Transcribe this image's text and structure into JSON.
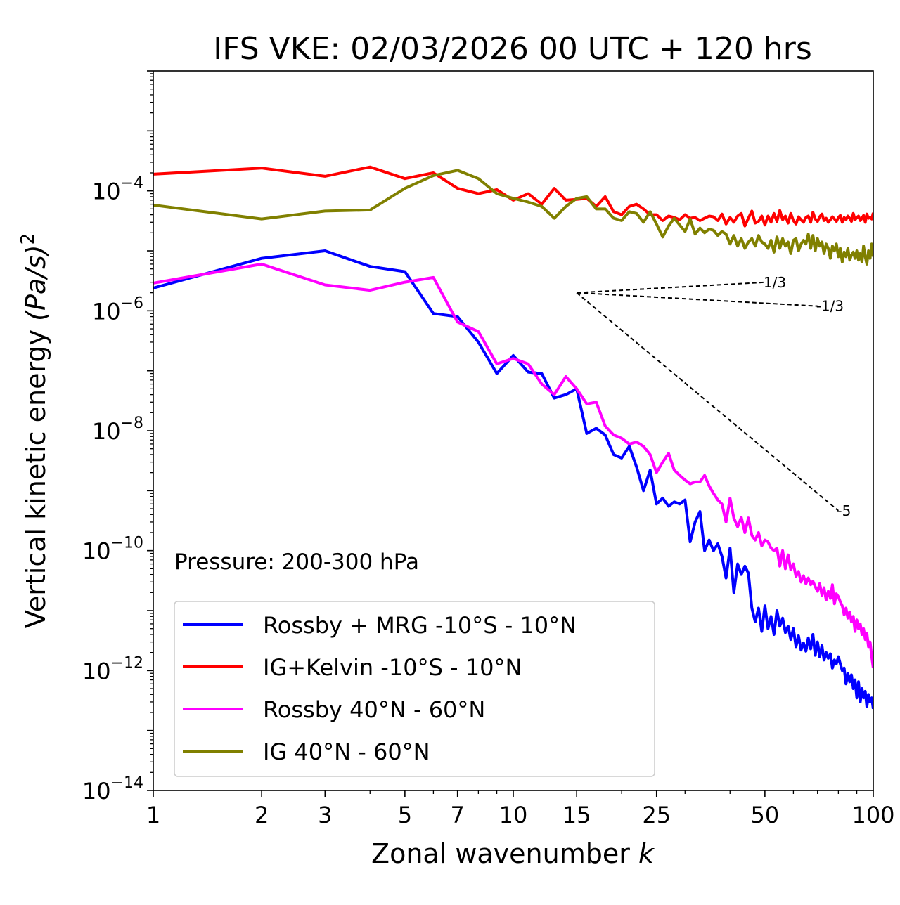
{
  "chart_data": {
    "type": "line",
    "title": "IFS VKE: 02/03/2026 00 UTC + 120 hrs",
    "xlabel": "Zonal wavenumber",
    "xlabel_var": "k",
    "ylabel": "Vertical kinetic energy",
    "ylabel_units": "(Pa/s)",
    "ylabel_units_exp": "2",
    "xscale": "log",
    "yscale": "log",
    "xlim": [
      1,
      100
    ],
    "ylim_exp": [
      -14,
      -2
    ],
    "x_ticks": [
      1,
      2,
      3,
      5,
      7,
      10,
      15,
      25,
      50,
      100
    ],
    "x_tick_labels": [
      "1",
      "2",
      "3",
      "5",
      "7",
      "10",
      "15",
      "25",
      "50",
      "100"
    ],
    "y_ticks_exp": [
      -14,
      -12,
      -10,
      -8,
      -6,
      -4
    ],
    "y_tick_base": "10",
    "y_tick_exponents": [
      "−14",
      "−12",
      "−10",
      "−8",
      "−6",
      "−4"
    ],
    "annotation": "Pressure: 200-300 hPa",
    "legend_position": "lower-left",
    "series": [
      {
        "name": "Rossby + MRG -10°S - 10°N",
        "color": "#0000ff",
        "x": [
          1,
          2,
          3,
          4,
          5,
          6,
          7,
          8,
          9,
          10,
          11,
          12,
          13,
          14,
          15,
          16,
          17,
          18,
          19,
          20,
          21,
          22,
          23,
          24,
          25,
          26,
          27,
          28,
          29,
          30,
          31,
          32,
          33,
          34,
          35,
          36,
          37,
          38,
          39,
          40,
          41,
          42,
          43,
          44,
          45,
          46,
          47,
          48,
          49,
          50,
          51,
          52,
          53,
          54,
          55,
          56,
          57,
          58,
          59,
          60,
          61,
          62,
          63,
          64,
          65,
          66,
          67,
          68,
          69,
          70,
          71,
          72,
          73,
          74,
          75,
          76,
          77,
          78,
          79,
          80,
          81,
          82,
          83,
          84,
          85,
          86,
          87,
          88,
          89,
          90,
          91,
          92,
          93,
          94,
          95,
          96,
          97,
          98,
          99,
          100
        ],
        "y": [
          2.4e-06,
          7.5e-06,
          1e-05,
          5.5e-06,
          4.5e-06,
          9e-07,
          8e-07,
          3e-07,
          9e-08,
          1.8e-07,
          9.5e-08,
          9e-08,
          3.5e-08,
          4e-08,
          5e-08,
          9e-09,
          1.1e-08,
          8.5e-09,
          4e-09,
          3.5e-09,
          5.5e-09,
          2.5e-09,
          1e-09,
          2.2e-09,
          6e-10,
          7.5e-10,
          5.5e-10,
          6.5e-10,
          6e-10,
          7e-10,
          1.4e-10,
          3e-10,
          4.5e-10,
          1e-10,
          1.5e-10,
          1e-10,
          1.3e-10,
          8e-11,
          3.5e-11,
          1.1e-10,
          2e-11,
          6e-11,
          4e-11,
          5.5e-11,
          4.2e-11,
          1.1e-11,
          6.5e-12,
          1.1e-11,
          4.5e-12,
          1.2e-11,
          5e-12,
          8e-12,
          4e-12,
          1e-11,
          5.5e-12,
          7.5e-12,
          4.3e-12,
          5.5e-12,
          3.3e-12,
          5e-12,
          2.5e-12,
          3.8e-12,
          2.2e-12,
          2.9e-12,
          2.1e-12,
          3.5e-12,
          2.3e-12,
          4e-12,
          1.8e-12,
          3e-12,
          1.7e-12,
          2.6e-12,
          1.5e-12,
          2e-12,
          1.6e-12,
          1.9e-12,
          1.1e-12,
          1.5e-12,
          1.3e-12,
          1.7e-12,
          1.3e-12,
          1e-12,
          1.1e-12,
          6e-13,
          9e-13,
          6.5e-13,
          8.5e-13,
          5e-13,
          7e-13,
          3.5e-13,
          6.5e-13,
          3e-13,
          5e-13,
          3.5e-13,
          4.5e-13,
          2.5e-13,
          4e-13,
          3e-13,
          3.5e-13,
          2.3e-13
        ]
      },
      {
        "name": "IG+Kelvin -10°S - 10°N",
        "color": "#ff0000",
        "x": [
          1,
          2,
          3,
          4,
          5,
          6,
          7,
          8,
          9,
          10,
          11,
          12,
          13,
          14,
          15,
          16,
          17,
          18,
          19,
          20,
          21,
          22,
          23,
          24,
          25,
          26,
          27,
          28,
          29,
          30,
          31,
          32,
          33,
          34,
          35,
          36,
          37,
          38,
          39,
          40,
          41,
          42,
          43,
          44,
          45,
          46,
          47,
          48,
          49,
          50,
          51,
          52,
          53,
          54,
          55,
          56,
          57,
          58,
          59,
          60,
          61,
          62,
          63,
          64,
          65,
          66,
          67,
          68,
          69,
          70,
          71,
          72,
          73,
          74,
          75,
          76,
          77,
          78,
          79,
          80,
          81,
          82,
          83,
          84,
          85,
          86,
          87,
          88,
          89,
          90,
          91,
          92,
          93,
          94,
          95,
          96,
          97,
          98,
          99,
          100
        ],
        "y": [
          0.00019,
          0.00024,
          0.000175,
          0.00025,
          0.00016,
          0.0002,
          0.00011,
          9e-05,
          0.000105,
          7e-05,
          9e-05,
          6e-05,
          0.00011,
          7e-05,
          7.2e-05,
          7.5e-05,
          5.5e-05,
          8e-05,
          4.5e-05,
          4e-05,
          5.5e-05,
          6e-05,
          5e-05,
          4e-05,
          4e-05,
          3.2e-05,
          3.8e-05,
          3.6e-05,
          3.3e-05,
          4e-05,
          3.5e-05,
          3.6e-05,
          3.2e-05,
          3.5e-05,
          3.8e-05,
          3.7e-05,
          3.2e-05,
          4.1e-05,
          2.8e-05,
          3.6e-05,
          3e-05,
          3.8e-05,
          4.2e-05,
          2.6e-05,
          3.5e-05,
          4.6e-05,
          2.9e-05,
          3.1e-05,
          3.8e-05,
          2.7e-05,
          3.8e-05,
          3e-05,
          4.2e-05,
          3.1e-05,
          4.7e-05,
          3.3e-05,
          3.8e-05,
          2.9e-05,
          4.2e-05,
          3.2e-05,
          2.8e-05,
          3.7e-05,
          3.3e-05,
          3e-05,
          3.6e-05,
          3.8e-05,
          3e-05,
          4.4e-05,
          3.4e-05,
          3.1e-05,
          3.7e-05,
          4.1e-05,
          3.2e-05,
          3.5e-05,
          3e-05,
          3.3e-05,
          3.7e-05,
          3.4e-05,
          3.1e-05,
          3.6e-05,
          3.9e-05,
          3e-05,
          3.6e-05,
          3.3e-05,
          3.8e-05,
          3.5e-05,
          3.1e-05,
          4.2e-05,
          3.3e-05,
          3.6e-05,
          3.8e-05,
          3.2e-05,
          3.5e-05,
          3.9e-05,
          3e-05,
          4.1e-05,
          3.5e-05,
          3.6e-05,
          3.4e-05,
          4.3e-05
        ]
      },
      {
        "name": "Rossby 40°N - 60°N",
        "color": "#ff00ff",
        "x": [
          1,
          2,
          3,
          4,
          5,
          6,
          7,
          8,
          9,
          10,
          11,
          12,
          13,
          14,
          15,
          16,
          17,
          18,
          19,
          20,
          21,
          22,
          23,
          24,
          25,
          26,
          27,
          28,
          29,
          30,
          31,
          32,
          33,
          34,
          35,
          36,
          37,
          38,
          39,
          40,
          41,
          42,
          43,
          44,
          45,
          46,
          47,
          48,
          49,
          50,
          51,
          52,
          53,
          54,
          55,
          56,
          57,
          58,
          59,
          60,
          61,
          62,
          63,
          64,
          65,
          66,
          67,
          68,
          69,
          70,
          71,
          72,
          73,
          74,
          75,
          76,
          77,
          78,
          79,
          80,
          81,
          82,
          83,
          84,
          85,
          86,
          87,
          88,
          89,
          90,
          91,
          92,
          93,
          94,
          95,
          96,
          97,
          98,
          99,
          100
        ],
        "y": [
          2.9e-06,
          6e-06,
          2.7e-06,
          2.2e-06,
          3e-06,
          3.6e-06,
          6.5e-07,
          4.5e-07,
          1.3e-07,
          1.6e-07,
          1.3e-07,
          6e-08,
          4e-08,
          8e-08,
          5e-08,
          2.8e-08,
          3e-08,
          1.2e-08,
          8.5e-09,
          7.5e-09,
          6e-09,
          6.5e-09,
          5.5e-09,
          4e-09,
          2e-09,
          3e-09,
          4.2e-09,
          2.2e-09,
          1.8e-09,
          1.5e-09,
          1.3e-09,
          1.4e-09,
          1.4e-09,
          1.8e-09,
          1.2e-09,
          9e-10,
          7e-10,
          6e-10,
          3e-10,
          7.5e-10,
          3.5e-10,
          2.5e-10,
          3.6e-10,
          2e-10,
          3.5e-10,
          1.8e-10,
          1.5e-10,
          2e-10,
          1.2e-10,
          1.5e-10,
          1.4e-10,
          1.1e-10,
          1e-10,
          1.1e-10,
          5.5e-11,
          1e-10,
          5e-11,
          8.5e-11,
          4.8e-11,
          6e-11,
          3.7e-11,
          4.5e-11,
          3e-11,
          3.8e-11,
          2.8e-11,
          3.5e-11,
          2.7e-11,
          3.1e-11,
          2.5e-11,
          2.1e-11,
          2.8e-11,
          1.8e-11,
          2.4e-11,
          1.5e-11,
          2.1e-11,
          1.6e-11,
          2.7e-11,
          1.3e-11,
          1.9e-11,
          1.7e-11,
          1.4e-11,
          1.2e-11,
          8.5e-12,
          1.1e-11,
          7.5e-12,
          9.5e-12,
          6.5e-12,
          8e-12,
          4.5e-12,
          7e-12,
          5e-12,
          6e-12,
          4e-12,
          5e-12,
          3.3e-12,
          4.2e-12,
          2.5e-12,
          3e-12,
          1.7e-12,
          1.1e-12
        ]
      },
      {
        "name": "IG 40°N - 60°N",
        "color": "#808000",
        "x": [
          1,
          2,
          3,
          4,
          5,
          6,
          7,
          8,
          9,
          10,
          11,
          12,
          13,
          14,
          15,
          16,
          17,
          18,
          19,
          20,
          21,
          22,
          23,
          24,
          25,
          26,
          27,
          28,
          29,
          30,
          31,
          32,
          33,
          34,
          35,
          36,
          37,
          38,
          39,
          40,
          41,
          42,
          43,
          44,
          45,
          46,
          47,
          48,
          49,
          50,
          51,
          52,
          53,
          54,
          55,
          56,
          57,
          58,
          59,
          60,
          61,
          62,
          63,
          64,
          65,
          66,
          67,
          68,
          69,
          70,
          71,
          72,
          73,
          74,
          75,
          76,
          77,
          78,
          79,
          80,
          81,
          82,
          83,
          84,
          85,
          86,
          87,
          88,
          89,
          90,
          91,
          92,
          93,
          94,
          95,
          96,
          97,
          98,
          99,
          100
        ],
        "y": [
          5.8e-05,
          3.4e-05,
          4.6e-05,
          4.8e-05,
          0.00011,
          0.00018,
          0.00022,
          0.00016,
          9e-05,
          7.5e-05,
          6.5e-05,
          5.5e-05,
          3.5e-05,
          5.5e-05,
          7.5e-05,
          8e-05,
          5e-05,
          5e-05,
          3.5e-05,
          3.2e-05,
          4.5e-05,
          4.2e-05,
          3e-05,
          4.5e-05,
          2.8e-05,
          1.7e-05,
          2.6e-05,
          3.5e-05,
          2.7e-05,
          2.1e-05,
          3.4e-05,
          1.9e-05,
          2.4e-05,
          2e-05,
          2.3e-05,
          2.2e-05,
          1.8e-05,
          2.1e-05,
          1.9e-05,
          1.3e-05,
          1.8e-05,
          1.2e-05,
          1.6e-05,
          1.1e-05,
          1.4e-05,
          1.6e-05,
          1.2e-05,
          1.8e-05,
          1.4e-05,
          1.3e-05,
          1.1e-05,
          1.5e-05,
          9.5e-06,
          1.7e-05,
          1.1e-05,
          1.6e-05,
          1.2e-05,
          1.4e-05,
          9e-06,
          1.5e-05,
          1.6e-05,
          1e-05,
          1.3e-05,
          1.5e-05,
          1.3e-05,
          1.9e-05,
          1.1e-05,
          1.8e-05,
          1e-05,
          1.6e-05,
          1.2e-05,
          1.4e-05,
          9e-06,
          1.3e-05,
          1.1e-05,
          7.5e-06,
          1.2e-05,
          1e-05,
          1.3e-05,
          8e-06,
          1.1e-05,
          6.5e-06,
          9.5e-06,
          8e-06,
          1.1e-05,
          7e-06,
          8.5e-06,
          9.5e-06,
          7.5e-06,
          1e-05,
          7e-06,
          9e-06,
          6.5e-06,
          1.2e-05,
          8e-06,
          6e-06,
          1e-05,
          7.5e-06,
          1.3e-05,
          8e-06
        ]
      }
    ],
    "slope_guides": [
      {
        "label": "1/3",
        "slope": 0.3333,
        "x_start": 15,
        "x_end": 50,
        "y_start": 2e-06
      },
      {
        "label": "-1/3",
        "slope": -0.3333,
        "x_start": 15,
        "x_end": 70,
        "y_start": 2e-06
      },
      {
        "label": "-5",
        "slope": -5,
        "x_start": 15,
        "x_end": 80,
        "y_start": 2e-06
      }
    ]
  }
}
